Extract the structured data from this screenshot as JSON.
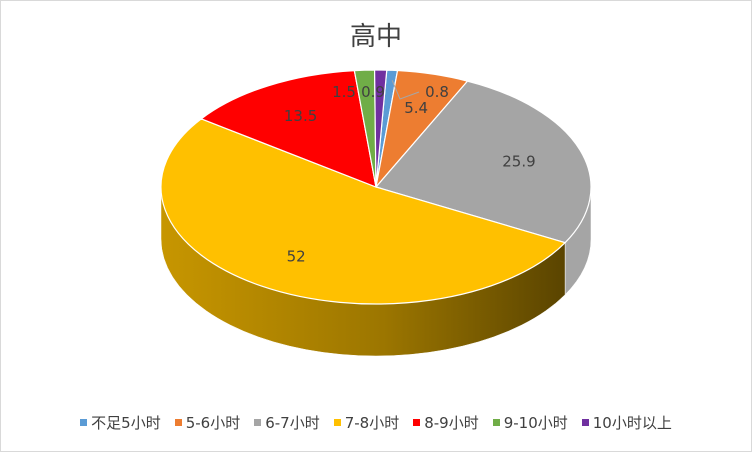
{
  "chart_data": {
    "type": "pie",
    "title": "高中",
    "categories": [
      "不足5小时",
      "5-6小时",
      "6-7小时",
      "7-8小时",
      "8-9小时",
      "9-10小时",
      "10小时以上"
    ],
    "values": [
      0.8,
      5.4,
      25.9,
      52,
      13.5,
      1.5,
      0.9
    ],
    "value_labels": [
      "0.8",
      "5.4",
      "25.9",
      "52",
      "13.5",
      "1.5",
      "0.9"
    ],
    "colors": [
      "#5b9bd5",
      "#ed7d31",
      "#a5a5a5",
      "#ffc000",
      "#ff0000",
      "#70ad47",
      "#7030a0"
    ],
    "legend_position": "bottom",
    "style": "3d"
  }
}
